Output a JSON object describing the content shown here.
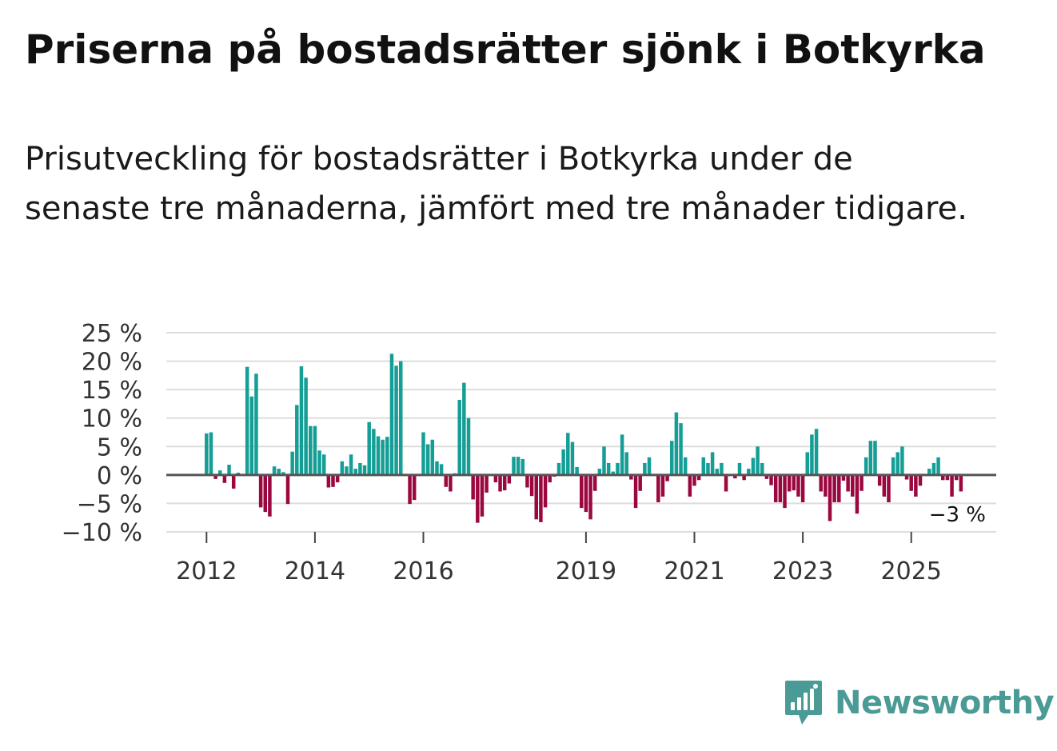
{
  "header": {
    "title": "Priserna på bostadsrätter sjönk i Botkyrka",
    "subtitle": "Prisutveckling för bostadsrätter i Botkyrka under de senaste tre månaderna, jämfört med tre månader tidigare."
  },
  "brand": {
    "name": "Newsworthy",
    "color": "#4a9a96",
    "icon": "newsworthy-logo-icon"
  },
  "colors": {
    "positive": "#159e96",
    "negative": "#9b0840",
    "grid": "#dddddd",
    "zero": "#555555"
  },
  "chart_data": {
    "type": "bar",
    "title": "Priserna på bostadsrätter sjönk i Botkyrka",
    "xlabel": "",
    "ylabel": "",
    "ylim": [
      -10,
      25
    ],
    "yticks": [
      25,
      20,
      15,
      10,
      5,
      0,
      -5,
      -10
    ],
    "ytick_labels": [
      "25 %",
      "20 %",
      "15 %",
      "10 %",
      "5 %",
      "0 %",
      "−5 %",
      "−10 %"
    ],
    "x_start": "2011-01",
    "xticks": [
      {
        "label": "2012",
        "month_index": 12
      },
      {
        "label": "2014",
        "month_index": 36
      },
      {
        "label": "2016",
        "month_index": 60
      },
      {
        "label": "2019",
        "month_index": 96
      },
      {
        "label": "2021",
        "month_index": 120
      },
      {
        "label": "2023",
        "month_index": 144
      },
      {
        "label": "2025",
        "month_index": 168
      }
    ],
    "end_label": "−3 %",
    "values": [
      0,
      0,
      0,
      0,
      0,
      0,
      0,
      0,
      0,
      0,
      0,
      0,
      7.3,
      7.5,
      -0.7,
      0.8,
      -1.4,
      1.8,
      -2.4,
      0.4,
      0,
      19,
      13.8,
      17.8,
      -5.7,
      -6.5,
      -7.3,
      1.5,
      1.1,
      0.5,
      -5.1,
      4.1,
      12.3,
      19.1,
      17.1,
      8.6,
      8.6,
      4.3,
      3.6,
      -2.2,
      -2.1,
      -1.3,
      2.4,
      1.5,
      3.6,
      1.1,
      2.1,
      1.7,
      9.3,
      8.1,
      6.8,
      6.2,
      6.7,
      21.3,
      19.2,
      20,
      0,
      -5.1,
      -4.4,
      0,
      7.5,
      5.4,
      6.2,
      2.4,
      1.9,
      -2.1,
      -2.9,
      0.3,
      13.2,
      16.2,
      10,
      -4.3,
      -8.4,
      -7.3,
      -3.1,
      0,
      -1.3,
      -2.9,
      -2.7,
      -1.5,
      3.2,
      3.2,
      2.8,
      -2.2,
      -3.7,
      -7.8,
      -8.3,
      -5.7,
      -1.3,
      -0.3,
      2.1,
      4.5,
      7.4,
      5.8,
      1.4,
      -5.8,
      -6.5,
      -7.8,
      -2.8,
      1.1,
      5,
      2.1,
      0.6,
      2.1,
      7.1,
      4,
      -0.8,
      -5.8,
      -2.8,
      2.1,
      3.1,
      0,
      -4.8,
      -3.8,
      -1.1,
      6,
      11,
      9.1,
      3.1,
      -3.8,
      -1.9,
      -0.9,
      3.1,
      2.1,
      4,
      1.1,
      2.1,
      -2.9,
      0,
      -0.6,
      2.1,
      -0.9,
      1.1,
      3,
      5,
      2.1,
      -0.7,
      -1.8,
      -4.8,
      -4.8,
      -5.8,
      -2.9,
      -2.7,
      -3.8,
      -4.8,
      4,
      7.1,
      8.1,
      -2.9,
      -3.8,
      -8.1,
      -4.8,
      -4.8,
      -1,
      -2.9,
      -3.8,
      -6.8,
      -2.8,
      3.1,
      6,
      6,
      -1.9,
      -3.8,
      -4.8,
      3.1,
      4,
      5,
      -0.8,
      -2.8,
      -3.8,
      -1.9,
      0,
      1.1,
      2.1,
      3.1,
      -0.9,
      -0.9,
      -3.8,
      -0.9,
      -2.9
    ]
  }
}
